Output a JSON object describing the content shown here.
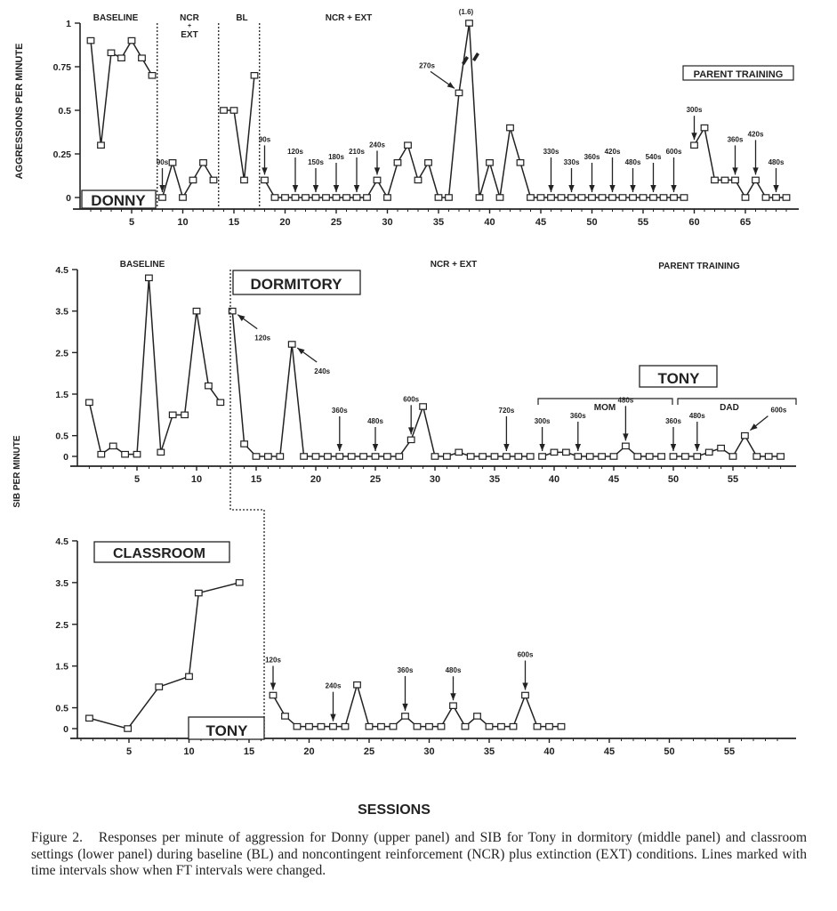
{
  "chart_data": [
    {
      "type": "line",
      "panel": "upper",
      "ylabel": "AGGRESSIONS PER MINUTE",
      "ylim": [
        0,
        1
      ],
      "y_ticks": [
        0,
        0.25,
        0.5,
        0.75,
        1
      ],
      "y_tick_labels": [
        "0",
        "0.25",
        "0.5",
        "0.75",
        "1"
      ],
      "x_ticks": [
        5,
        10,
        15,
        20,
        25,
        30,
        35,
        40,
        45,
        50,
        55,
        60,
        65
      ],
      "x_tick_labels": [
        "5",
        "10",
        "15",
        "20",
        "25",
        "30",
        "35",
        "40",
        "45",
        "50",
        "55",
        "60",
        "65"
      ],
      "xlim": [
        0,
        70
      ],
      "phase_labels": [
        "BASELINE",
        "NCR",
        "+",
        "EXT",
        "BL",
        "NCR + EXT"
      ],
      "boxed_labels": [
        "DONNY",
        "PARENT TRAINING"
      ],
      "clipped_value_label": "(1.6)",
      "series": [
        {
          "x": [
            1,
            2,
            3,
            4,
            5,
            6,
            7
          ],
          "y": [
            0.9,
            0.3,
            0.83,
            0.8,
            0.9,
            0.8,
            0.7
          ]
        },
        {
          "x": [
            8,
            9,
            10,
            11,
            12,
            13
          ],
          "y": [
            0,
            0.2,
            0,
            0.1,
            0.2,
            0.1
          ]
        },
        {
          "x": [
            14,
            15,
            16,
            17
          ],
          "y": [
            0.5,
            0.5,
            0.1,
            0.7
          ]
        },
        {
          "x": [
            18,
            19,
            20,
            21,
            22,
            23,
            24,
            25,
            26,
            27,
            28,
            29,
            30,
            31,
            32,
            33,
            34,
            35,
            36,
            37,
            38,
            39,
            40,
            41,
            42,
            43,
            44,
            45,
            46,
            47,
            48,
            49,
            50,
            51,
            52,
            53,
            54,
            55,
            56,
            57,
            58,
            59
          ],
          "y": [
            0.1,
            0,
            0,
            0,
            0,
            0,
            0,
            0,
            0,
            0,
            0,
            0.1,
            0,
            0.2,
            0.3,
            0.1,
            0.2,
            0,
            0,
            0.6,
            1.6,
            0,
            0.2,
            0,
            0.4,
            0.2,
            0,
            0,
            0,
            0,
            0,
            0,
            0,
            0,
            0,
            0,
            0,
            0,
            0,
            0,
            0,
            0
          ]
        },
        {
          "x": [
            60,
            61,
            62,
            63,
            64,
            65,
            66,
            67,
            68,
            69
          ],
          "y": [
            0.3,
            0.4,
            0.1,
            0.1,
            0.1,
            0,
            0.1,
            0,
            0,
            0
          ]
        }
      ],
      "annotations": [
        {
          "x": 8,
          "label": "90s",
          "dir": "down"
        },
        {
          "x": 18,
          "label": "90s",
          "dir": "down"
        },
        {
          "x": 21,
          "label": "120s",
          "dir": "down"
        },
        {
          "x": 23,
          "label": "150s",
          "dir": "down"
        },
        {
          "x": 25,
          "label": "180s",
          "dir": "down"
        },
        {
          "x": 27,
          "label": "210s",
          "dir": "down"
        },
        {
          "x": 29,
          "label": "240s",
          "dir": "down"
        },
        {
          "x": 37,
          "label": "270s",
          "dir": "from-upper-left"
        },
        {
          "x": 46,
          "label": "330s",
          "dir": "down"
        },
        {
          "x": 48,
          "label": "330s",
          "dir": "down"
        },
        {
          "x": 50,
          "label": "360s",
          "dir": "down"
        },
        {
          "x": 52,
          "label": "420s",
          "dir": "down"
        },
        {
          "x": 54,
          "label": "480s",
          "dir": "down"
        },
        {
          "x": 56,
          "label": "540s",
          "dir": "down"
        },
        {
          "x": 58,
          "label": "600s",
          "dir": "down"
        },
        {
          "x": 60,
          "label": "300s",
          "dir": "down"
        },
        {
          "x": 64,
          "label": "360s",
          "dir": "down"
        },
        {
          "x": 66,
          "label": "420s",
          "dir": "down"
        },
        {
          "x": 68,
          "label": "480s",
          "dir": "down"
        }
      ]
    },
    {
      "type": "line",
      "panel": "middle",
      "ylabel": "SIB PER MINUTE",
      "ylim": [
        0,
        4.5
      ],
      "y_ticks": [
        0,
        0.5,
        1.5,
        2.5,
        3.5,
        4.5
      ],
      "y_tick_labels": [
        "0",
        "0.5",
        "1.5",
        "2.5",
        "3.5",
        "4.5"
      ],
      "x_ticks": [
        5,
        10,
        15,
        20,
        25,
        30,
        35,
        40,
        45,
        50,
        55
      ],
      "x_tick_labels": [
        "5",
        "10",
        "15",
        "20",
        "25",
        "30",
        "35",
        "40",
        "45",
        "50",
        "55"
      ],
      "xlim": [
        0,
        60
      ],
      "phase_labels": [
        "BASELINE",
        "NCR + EXT",
        "PARENT TRAINING"
      ],
      "boxed_labels": [
        "DORMITORY",
        "TONY"
      ],
      "bracket_labels": [
        "MOM",
        "DAD"
      ],
      "series": [
        {
          "x": [
            1,
            2,
            3,
            4,
            5,
            6,
            7,
            8,
            9,
            10,
            11,
            12
          ],
          "y": [
            1.3,
            0.05,
            0.25,
            0.05,
            0.05,
            4.3,
            0.1,
            1.0,
            1.0,
            3.5,
            1.7,
            1.3
          ]
        },
        {
          "x": [
            13,
            14,
            15,
            16,
            17,
            18,
            19,
            20,
            21,
            22,
            23,
            24,
            25,
            26,
            27,
            28,
            29,
            30,
            31,
            32,
            33,
            34,
            35,
            36,
            37,
            38
          ],
          "y": [
            3.5,
            0.3,
            0,
            0,
            0,
            2.7,
            0,
            0,
            0,
            0,
            0,
            0,
            0,
            0,
            0,
            0.4,
            1.2,
            0,
            0,
            0.1,
            0,
            0,
            0,
            0,
            0,
            0
          ]
        },
        {
          "x": [
            39,
            40,
            41,
            42,
            43,
            44,
            45,
            46,
            47,
            48,
            49
          ],
          "y": [
            0,
            0.1,
            0.1,
            0,
            0,
            0,
            0,
            0.25,
            0,
            0,
            0
          ]
        },
        {
          "x": [
            50,
            51,
            52,
            53,
            54,
            55,
            56,
            57,
            58,
            59
          ],
          "y": [
            0,
            0,
            0,
            0.1,
            0.2,
            0,
            0.5,
            0,
            0,
            0
          ]
        }
      ],
      "annotations": [
        {
          "x": 13,
          "label": "120s",
          "dir": "from-lower-right"
        },
        {
          "x": 18,
          "label": "240s",
          "dir": "from-lower-right"
        },
        {
          "x": 22,
          "label": "360s",
          "dir": "down"
        },
        {
          "x": 25,
          "label": "480s",
          "dir": "down"
        },
        {
          "x": 28,
          "label": "600s",
          "dir": "down"
        },
        {
          "x": 36,
          "label": "720s",
          "dir": "down"
        },
        {
          "x": 39,
          "label": "300s",
          "dir": "down"
        },
        {
          "x": 42,
          "label": "360s",
          "dir": "down"
        },
        {
          "x": 46,
          "label": "480s",
          "dir": "down"
        },
        {
          "x": 50,
          "label": "360s",
          "dir": "down"
        },
        {
          "x": 52,
          "label": "480s",
          "dir": "down"
        },
        {
          "x": 56,
          "label": "600s",
          "dir": "from-upper-right"
        }
      ]
    },
    {
      "type": "line",
      "panel": "lower",
      "ylabel": "SIB PER MINUTE",
      "xlabel": "SESSIONS",
      "ylim": [
        0,
        4.5
      ],
      "y_ticks": [
        0,
        0.5,
        1.5,
        2.5,
        3.5,
        4.5
      ],
      "y_tick_labels": [
        "0",
        "0.5",
        "1.5",
        "2.5",
        "3.5",
        "4.5"
      ],
      "x_ticks": [
        5,
        10,
        15,
        20,
        25,
        30,
        35,
        40,
        45,
        50,
        55
      ],
      "x_tick_labels": [
        "5",
        "10",
        "15",
        "20",
        "25",
        "30",
        "35",
        "40",
        "45",
        "50",
        "55"
      ],
      "xlim": [
        0,
        60
      ],
      "boxed_labels": [
        "CLASSROOM",
        "TONY"
      ],
      "series": [
        {
          "x": [
            1.7,
            4.9,
            7.5,
            10,
            10.8,
            14.2
          ],
          "y": [
            0.25,
            0,
            1.0,
            1.25,
            3.25,
            3.5
          ]
        },
        {
          "x": [
            17,
            18,
            19,
            20,
            21,
            22,
            23,
            24,
            25,
            26,
            27,
            28,
            29,
            30,
            31,
            32,
            33,
            34,
            35,
            36,
            37,
            38,
            39,
            40,
            41
          ],
          "y": [
            0.8,
            0.3,
            0.05,
            0.05,
            0.05,
            0.05,
            0.05,
            1.05,
            0.05,
            0.05,
            0.05,
            0.3,
            0.05,
            0.05,
            0.05,
            0.55,
            0.05,
            0.3,
            0.05,
            0.05,
            0.05,
            0.8,
            0.05,
            0.05,
            0.05
          ]
        }
      ],
      "annotations": [
        {
          "x": 17,
          "label": "120s",
          "dir": "down"
        },
        {
          "x": 22,
          "label": "240s",
          "dir": "down"
        },
        {
          "x": 28,
          "label": "360s",
          "dir": "down"
        },
        {
          "x": 32,
          "label": "480s",
          "dir": "down"
        },
        {
          "x": 38,
          "label": "600s",
          "dir": "down"
        }
      ]
    }
  ],
  "caption": {
    "figure_label": "Figure 2.",
    "text": "Responses per minute of aggression for Donny (upper panel) and SIB for Tony in dormitory (middle panel) and classroom settings (lower panel) during baseline (BL) and noncontingent reinforcement (NCR) plus extinction (EXT) conditions. Lines marked with time intervals show when FT intervals were changed."
  },
  "colors": {
    "ink": "#222222",
    "marker_fill": "#ffffff",
    "background": "#ffffff"
  }
}
